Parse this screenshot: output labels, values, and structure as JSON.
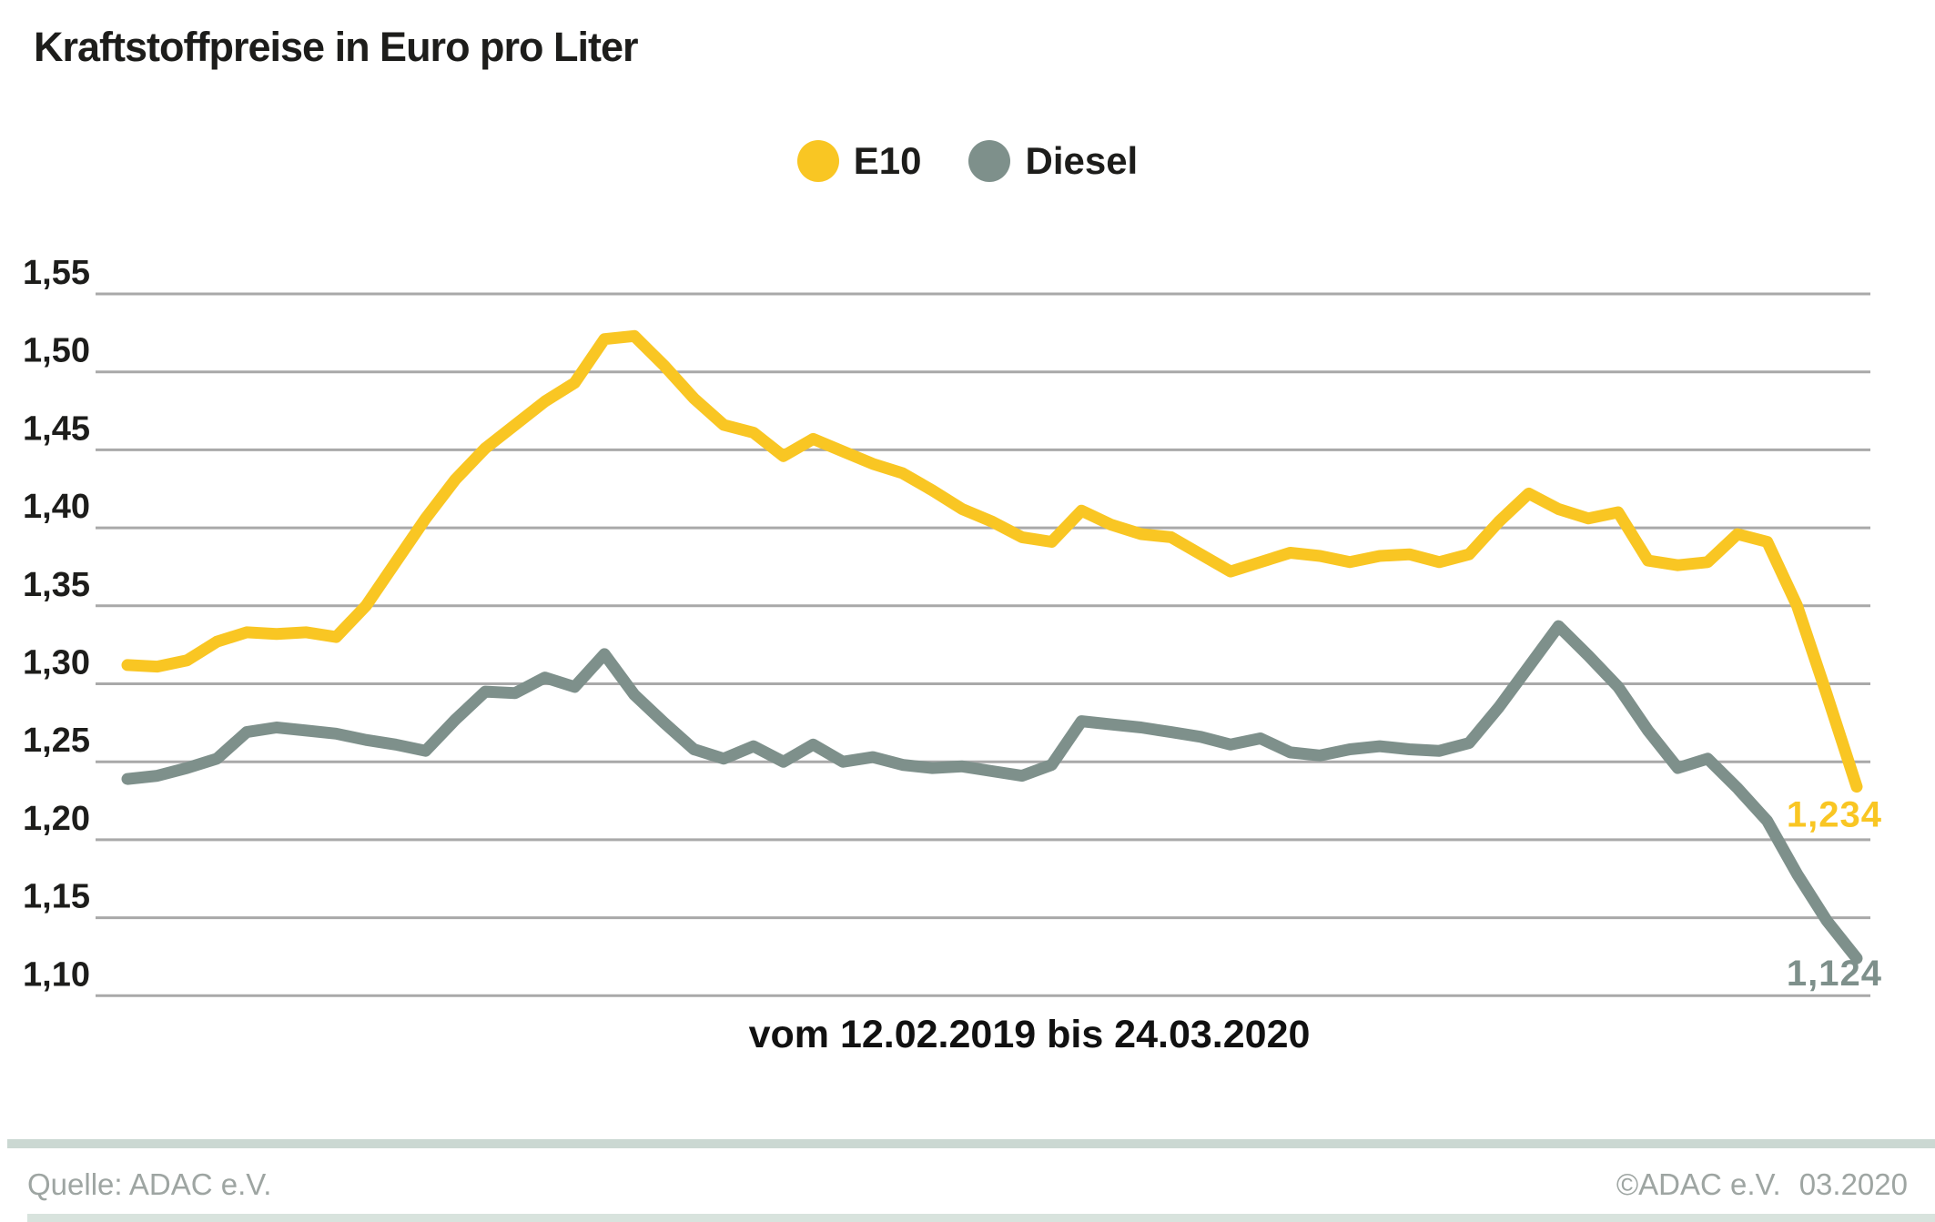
{
  "title": "Kraftstoffpreise in Euro pro Liter",
  "legend": {
    "items": [
      {
        "label": "E10",
        "color": "#F9C623"
      },
      {
        "label": "Diesel",
        "color": "#7E908B"
      }
    ]
  },
  "footer": {
    "source": "Quelle: ADAC e.V.",
    "copyright": "©ADAC e.V.",
    "date": "03.2020"
  },
  "chart_data": {
    "type": "line",
    "title": "Kraftstoffpreise in Euro pro Liter",
    "x_caption": "vom 12.02.2019 bis 24.03.2020",
    "x_range": {
      "start": "12.02.2019",
      "end": "24.03.2020",
      "interval": "weekly",
      "n_points": 59
    },
    "ylim": [
      1.1,
      1.55
    ],
    "grid": "horizontal",
    "legend_position": "top-center",
    "gridline_color": "#a9a9a9",
    "yticks": [
      {
        "label": "1,55",
        "value": 1.55
      },
      {
        "label": "1,50",
        "value": 1.5
      },
      {
        "label": "1,45",
        "value": 1.45
      },
      {
        "label": "1,40",
        "value": 1.4
      },
      {
        "label": "1,35",
        "value": 1.35
      },
      {
        "label": "1,30",
        "value": 1.3
      },
      {
        "label": "1,25",
        "value": 1.25
      },
      {
        "label": "1,20",
        "value": 1.2
      },
      {
        "label": "1,15",
        "value": 1.15
      },
      {
        "label": "1,10",
        "value": 1.1
      }
    ],
    "series": [
      {
        "name": "E10",
        "color": "#F9C623",
        "end_label": "1,234",
        "values": [
          1.312,
          1.311,
          1.315,
          1.327,
          1.333,
          1.332,
          1.333,
          1.33,
          1.35,
          1.378,
          1.406,
          1.431,
          1.451,
          1.466,
          1.481,
          1.493,
          1.521,
          1.523,
          1.504,
          1.483,
          1.466,
          1.461,
          1.446,
          1.457,
          1.449,
          1.441,
          1.435,
          1.424,
          1.412,
          1.404,
          1.394,
          1.391,
          1.411,
          1.402,
          1.396,
          1.394,
          1.383,
          1.372,
          1.378,
          1.384,
          1.382,
          1.378,
          1.382,
          1.383,
          1.378,
          1.383,
          1.404,
          1.422,
          1.412,
          1.406,
          1.41,
          1.379,
          1.376,
          1.378,
          1.396,
          1.391,
          1.35,
          1.293,
          1.234
        ]
      },
      {
        "name": "Diesel",
        "color": "#7E908B",
        "end_label": "1,124",
        "values": [
          1.239,
          1.241,
          1.246,
          1.252,
          1.269,
          1.272,
          1.27,
          1.268,
          1.264,
          1.261,
          1.257,
          1.277,
          1.295,
          1.294,
          1.304,
          1.298,
          1.319,
          1.293,
          1.275,
          1.258,
          1.252,
          1.26,
          1.25,
          1.261,
          1.25,
          1.253,
          1.248,
          1.246,
          1.247,
          1.244,
          1.241,
          1.248,
          1.276,
          1.274,
          1.272,
          1.269,
          1.266,
          1.261,
          1.265,
          1.256,
          1.254,
          1.258,
          1.26,
          1.258,
          1.257,
          1.262,
          1.285,
          1.311,
          1.337,
          1.318,
          1.298,
          1.27,
          1.246,
          1.252,
          1.233,
          1.212,
          1.178,
          1.148,
          1.124
        ]
      }
    ]
  }
}
